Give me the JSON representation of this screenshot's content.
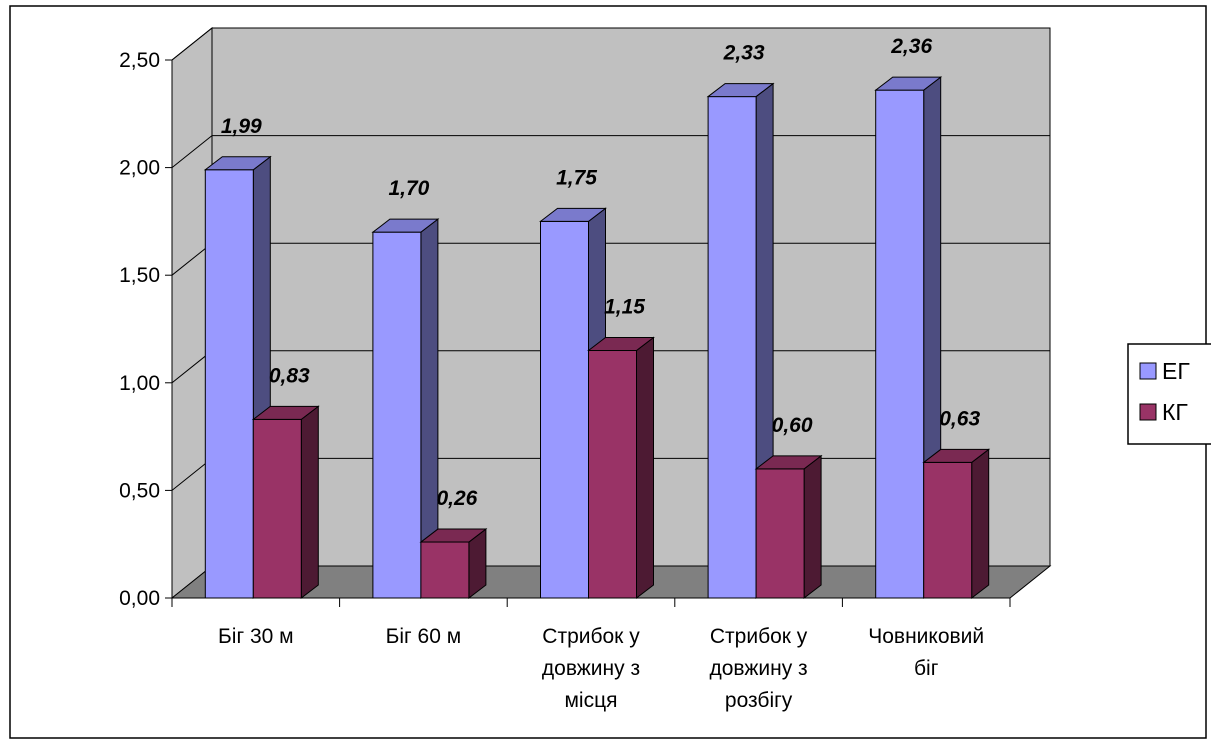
{
  "chart_data": {
    "type": "bar",
    "title": "",
    "xlabel": "",
    "ylabel": "",
    "ylim": [
      0,
      2.5
    ],
    "y_ticks": [
      "0,00",
      "0,50",
      "1,00",
      "1,50",
      "2,00",
      "2,50"
    ],
    "y_tick_values": [
      0,
      0.5,
      1.0,
      1.5,
      2.0,
      2.5
    ],
    "grid": true,
    "legend": "right",
    "categories": [
      [
        "Біг 30 м"
      ],
      [
        "Біг 60 м"
      ],
      [
        "Стрибок у",
        "довжину з",
        "місця"
      ],
      [
        "Стрибок у",
        "довжину з",
        "розбігу"
      ],
      [
        "Човниковий",
        "біг"
      ]
    ],
    "series": [
      {
        "name": "ЕГ",
        "values": [
          1.99,
          1.7,
          1.75,
          2.33,
          2.36
        ],
        "labels": [
          "1,99",
          "1,70",
          "1,75",
          "2,33",
          "2,36"
        ],
        "color": "#9999ff"
      },
      {
        "name": "КГ",
        "values": [
          0.83,
          0.26,
          1.15,
          0.6,
          0.63
        ],
        "labels": [
          "0,83",
          "0,26",
          "1,15",
          "0,60",
          "0,63"
        ],
        "color": "#993366"
      }
    ],
    "colors": {
      "wall": "#c0c0c0",
      "floor": "#808080",
      "grid": "#000000",
      "background": "#ffffff"
    }
  }
}
